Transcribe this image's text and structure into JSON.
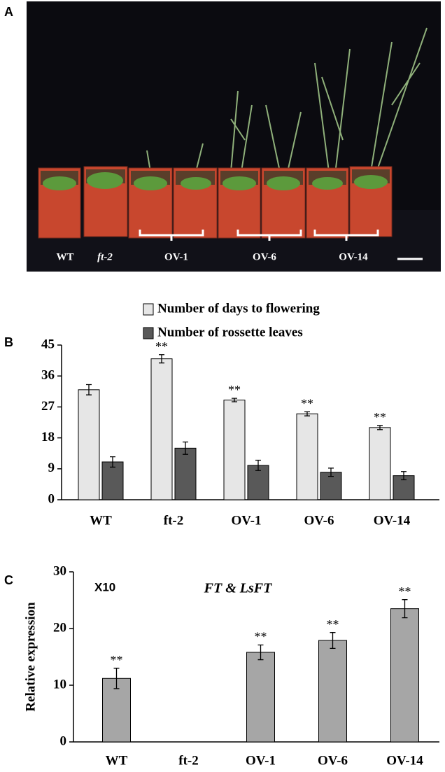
{
  "photo": {
    "panel_label": "A",
    "labels": [
      "WT",
      "ft-2",
      "OV-1",
      "OV-6",
      "OV-14"
    ]
  },
  "chart_data": [
    {
      "type": "bar",
      "panel_label": "B",
      "categories": [
        "WT",
        "ft-2",
        "OV-1",
        "OV-6",
        "OV-14"
      ],
      "series": [
        {
          "name": "Number of days to flowering",
          "color": "#e6e6e6",
          "values": [
            32,
            41,
            29,
            25,
            21
          ],
          "errors": [
            1.5,
            1.2,
            0.5,
            0.6,
            0.6
          ],
          "significance": [
            null,
            "**",
            "**",
            "**",
            "**"
          ]
        },
        {
          "name": "Number of rossette leaves",
          "color": "#595959",
          "values": [
            11,
            15,
            10,
            8,
            7
          ],
          "errors": [
            1.5,
            1.8,
            1.5,
            1.2,
            1.2
          ]
        }
      ],
      "ylim": [
        0,
        45
      ],
      "yticks": [
        0,
        9,
        18,
        27,
        36,
        45
      ],
      "legend": "top"
    },
    {
      "type": "bar",
      "panel_label": "C",
      "ylabel": "Relative expression",
      "annotations": [
        "X10",
        "FT & LsFT"
      ],
      "categories": [
        "WT",
        "ft-2",
        "OV-1",
        "OV-6",
        "OV-14"
      ],
      "series": [
        {
          "color": "#a6a6a6",
          "values": [
            11.2,
            null,
            15.8,
            17.9,
            23.5
          ],
          "errors": [
            1.8,
            null,
            1.3,
            1.4,
            1.6
          ],
          "significance": [
            "**",
            null,
            "**",
            "**",
            "**"
          ]
        }
      ],
      "ylim": [
        0,
        30
      ],
      "yticks": [
        0,
        10,
        20,
        30
      ]
    }
  ]
}
